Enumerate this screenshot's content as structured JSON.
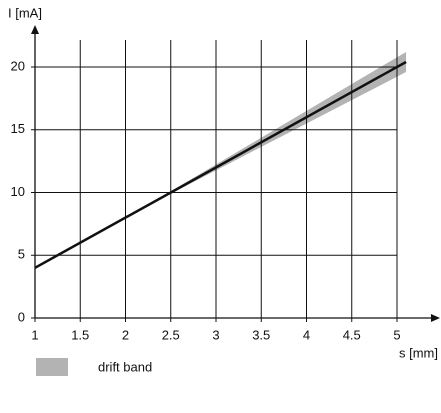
{
  "chart_data": {
    "type": "line",
    "y_label": "I [mA]",
    "x_label": "s [mm]",
    "xlim": [
      1,
      5
    ],
    "ylim": [
      0,
      20
    ],
    "xticks": [
      1,
      1.5,
      2,
      2.5,
      3,
      3.5,
      4,
      4.5,
      5
    ],
    "yticks": [
      0,
      5,
      10,
      15,
      20
    ],
    "grid": true,
    "series": [
      {
        "color": "#111111",
        "x": [
          1,
          5.1
        ],
        "values": [
          4,
          20.4
        ]
      }
    ],
    "band": {
      "name": "drift band",
      "color": "#b3b3b3",
      "x": [
        1,
        2.5,
        5.1
      ],
      "upper": [
        4.1,
        10.1,
        21.2
      ],
      "lower": [
        4,
        9.9,
        19.6
      ]
    }
  }
}
